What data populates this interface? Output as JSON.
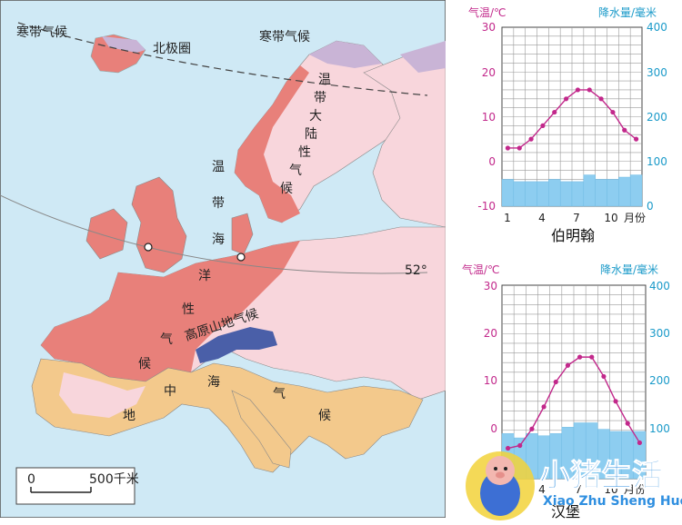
{
  "map": {
    "labels": {
      "cold_left": "寒带气候",
      "cold_right": "寒带气候",
      "arctic_circle": "北极圈",
      "continental": [
        "温",
        "带",
        "大",
        "陆",
        "性",
        "气",
        "候"
      ],
      "oceanic_top": [
        "温",
        "带",
        "海"
      ],
      "oceanic_bottom": [
        "洋",
        "性",
        "气",
        "候"
      ],
      "highland": "高原山地气候",
      "med": [
        "地",
        "中",
        "海",
        "气",
        "候"
      ],
      "lat52": "52°",
      "scale_zero": "0",
      "scale_km": "500千米"
    },
    "colors": {
      "sea": "#cfe9f5",
      "oceanic": "#e8807a",
      "continental": "#f8d6dc",
      "cold": "#c9b4d6",
      "mediterranean": "#f3c98c",
      "highland": "#4a5fa8",
      "land_other": "#fbe4e8"
    }
  },
  "charts": [
    {
      "city": "伯明翰",
      "temp_label": "气温/℃",
      "precip_label": "降水量/毫米",
      "month_label": "月份",
      "temp_ticks": [
        "30",
        "20",
        "10",
        "0",
        "-10"
      ],
      "precip_ticks": [
        "400",
        "300",
        "200",
        "100",
        "0"
      ],
      "x_ticks": [
        "1",
        "4",
        "7",
        "10"
      ],
      "chart_data": {
        "type": "line+bar",
        "months": [
          1,
          2,
          3,
          4,
          5,
          6,
          7,
          8,
          9,
          10,
          11,
          12
        ],
        "temperature": [
          3,
          3,
          5,
          8,
          11,
          14,
          16,
          16,
          14,
          11,
          7,
          5
        ],
        "precipitation": [
          60,
          55,
          55,
          55,
          60,
          55,
          55,
          70,
          60,
          60,
          65,
          70
        ],
        "temp_ylim": [
          -10,
          30
        ],
        "precip_ylim": [
          0,
          400
        ]
      }
    },
    {
      "city": "汉堡",
      "temp_label": "气温/℃",
      "precip_label": "降水量/毫米",
      "month_label": "月份",
      "temp_ticks": [
        "30",
        "20",
        "10",
        "0"
      ],
      "precip_ticks": [
        "400",
        "300",
        "200",
        "100"
      ],
      "x_ticks": [
        "4",
        "7",
        "10"
      ],
      "chart_data": {
        "type": "line+bar",
        "months": [
          1,
          2,
          3,
          4,
          5,
          6,
          7,
          8,
          9,
          10,
          11,
          12
        ],
        "temperature": [
          0.5,
          1,
          4,
          8,
          12.5,
          15.5,
          17,
          17,
          13.5,
          9,
          5,
          1.5
        ],
        "precipitation": [
          55,
          45,
          55,
          50,
          55,
          70,
          80,
          80,
          65,
          60,
          60,
          60
        ],
        "temp_ylim": [
          -5,
          30
        ],
        "precip_ylim": [
          -50,
          400
        ]
      }
    }
  ],
  "logo": {
    "title": "小猪生活",
    "subtitle": "Xiao Zhu Sheng Huo"
  }
}
